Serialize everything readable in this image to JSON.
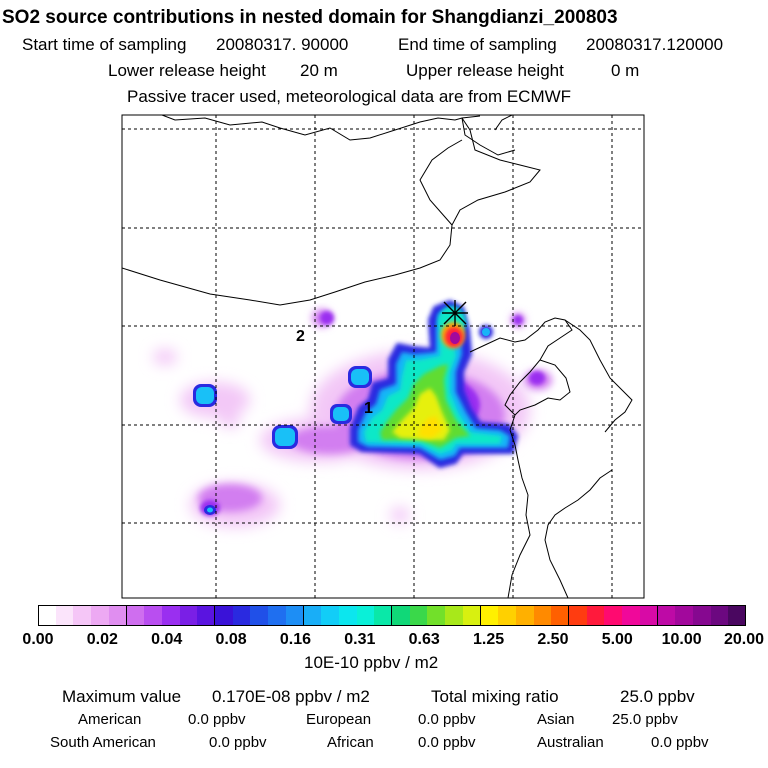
{
  "header": {
    "title": "SO2 source contributions in nested domain for Shangdianzi_200803",
    "start_label": "Start time of sampling",
    "start_value": "20080317. 90000",
    "end_label": "End time of sampling",
    "end_value": "20080317.120000",
    "lower_label": "Lower release height",
    "lower_value": "20 m",
    "upper_label": "Upper release height",
    "upper_value": "0 m",
    "tracer_note": "Passive tracer used, meteorological data are from ECMWF"
  },
  "map": {
    "labels": [
      "1",
      "2"
    ],
    "receptor_marker": "receptor-star-icon"
  },
  "colorbar": {
    "colors": [
      "#ffffff",
      "#fbe4fb",
      "#f5c6f7",
      "#eda9f3",
      "#e08ef0",
      "#cf6eef",
      "#b94ef0",
      "#9a2ff0",
      "#7a1fe6",
      "#5a14e0",
      "#3a12d8",
      "#2a2ae0",
      "#2050e8",
      "#1f6ff0",
      "#1d8ef5",
      "#19aef7",
      "#12cdf7",
      "#0ce6ee",
      "#0af0d8",
      "#0ae8a8",
      "#10d878",
      "#3ad84a",
      "#72e02a",
      "#a8e81a",
      "#d8f010",
      "#fff000",
      "#ffd000",
      "#ffb000",
      "#ff8a00",
      "#ff6000",
      "#ff3c10",
      "#ff1a3c",
      "#ff0a70",
      "#f0089a",
      "#d80aa6",
      "#be0aa6",
      "#a2089c",
      "#860890",
      "#6c0880",
      "#4a0760"
    ],
    "ticks": [
      "0.00",
      "0.02",
      "0.04",
      "0.08",
      "0.16",
      "0.31",
      "0.63",
      "1.25",
      "2.50",
      "5.00",
      "10.00",
      "20.00"
    ],
    "unit": "10E-10 ppbv / m2"
  },
  "summary": {
    "max_label": "Maximum value",
    "max_value": "0.170E-08 ppbv / m2",
    "total_label": "Total mixing ratio",
    "total_value": "25.0 ppbv",
    "regions": [
      {
        "name": "American",
        "value": "0.0 ppbv"
      },
      {
        "name": "European",
        "value": "0.0 ppbv"
      },
      {
        "name": "Asian",
        "value": "25.0 ppbv"
      },
      {
        "name": "South American",
        "value": "0.0 ppbv"
      },
      {
        "name": "African",
        "value": "0.0 ppbv"
      },
      {
        "name": "Australian",
        "value": "0.0 ppbv"
      }
    ]
  }
}
